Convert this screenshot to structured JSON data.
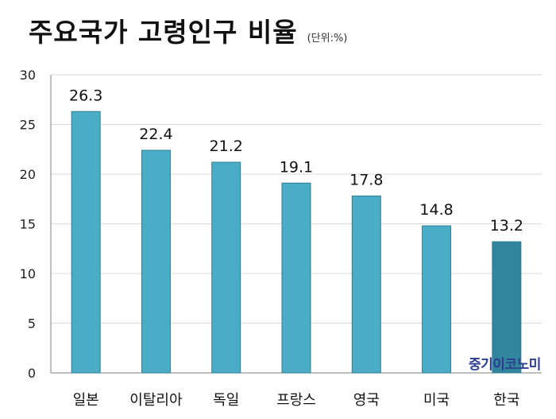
{
  "header": {
    "title": "주요국가 고령인구 비율",
    "unit": "(단위:%)"
  },
  "watermark": "중기이코노미",
  "colors": {
    "bar": "#4aacc5",
    "highlight_bar": "#31859c",
    "bar_stroke": "#2f7f94",
    "grid": "#d9d9d9",
    "axis": "#7f7f7f"
  },
  "chart_data": {
    "type": "bar",
    "title": "주요국가 고령인구 비율",
    "subtitle": "(단위:%)",
    "categories": [
      "일본",
      "이탈리아",
      "독일",
      "프랑스",
      "영국",
      "미국",
      "한국"
    ],
    "values": [
      26.3,
      22.4,
      21.2,
      19.1,
      17.8,
      14.8,
      13.2
    ],
    "highlight_index": 6,
    "ylim": [
      0,
      30
    ],
    "yticks": [
      0,
      5,
      10,
      15,
      20,
      25,
      30
    ],
    "grid": true,
    "data_labels": true,
    "xlabel": "",
    "ylabel": ""
  }
}
